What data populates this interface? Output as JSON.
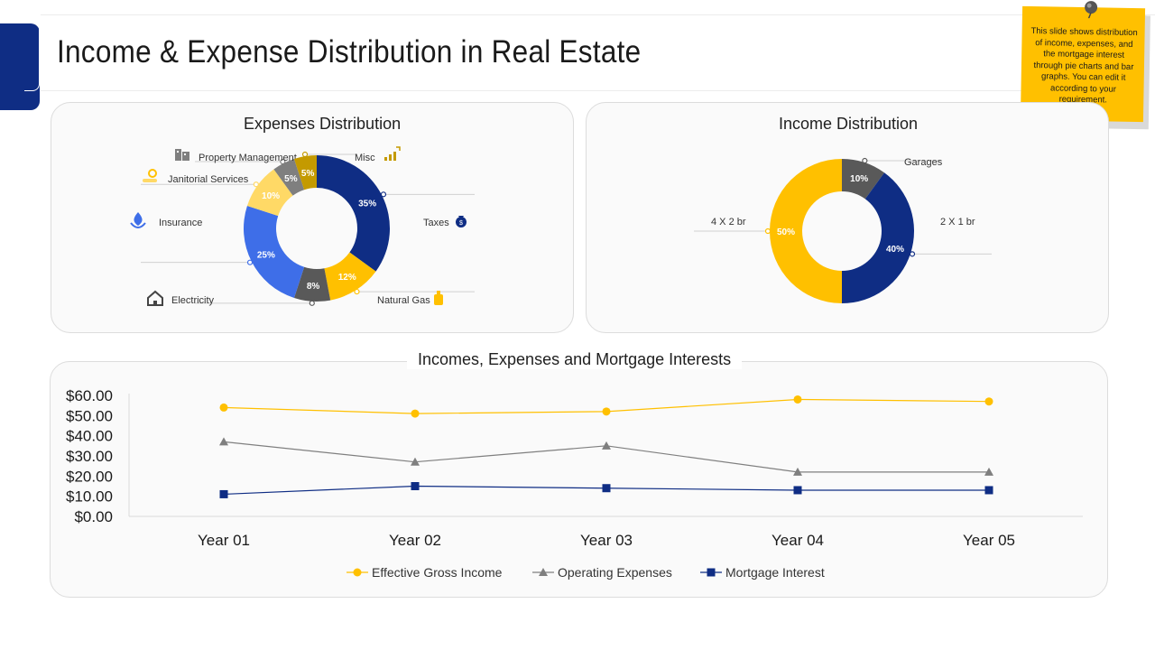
{
  "title": "Income & Expense Distribution in Real Estate",
  "note": {
    "text": "This slide shows distribution of income, expenses, and the mortgage interest through pie charts and bar graphs. You can edit it according to your requirement."
  },
  "colors": {
    "navy": "#0f2d84",
    "yellow": "#ffc000",
    "gray": "#595959",
    "blue": "#3e6ee8",
    "light_yellow": "#ffd966",
    "gold": "#c49a00",
    "axis_gray": "#7f7f7f"
  },
  "chart_data": [
    {
      "type": "pie",
      "variant": "donut",
      "title": "Expenses Distribution",
      "slices": [
        {
          "label": "Taxes",
          "value": 35,
          "display": "35%",
          "color": "#0f2d84",
          "icon": "money-bag-icon"
        },
        {
          "label": "Natural Gas",
          "value": 12,
          "display": "12%",
          "color": "#ffc000",
          "icon": "gas-cylinder-icon"
        },
        {
          "label": "Electricity",
          "value": 8,
          "display": "8%",
          "color": "#595959",
          "icon": "house-icon"
        },
        {
          "label": "Insurance",
          "value": 25,
          "display": "25%",
          "color": "#3e6ee8",
          "icon": "insurance-hand-icon"
        },
        {
          "label": "Janitorial Services",
          "value": 10,
          "display": "10%",
          "color": "#ffd966",
          "icon": "janitorial-services-icon"
        },
        {
          "label": "Property Management",
          "value": 5,
          "display": "5%",
          "color": "#7f7f7f",
          "icon": "office-building-icon"
        },
        {
          "label": "Misc",
          "value": 5,
          "display": "5%",
          "color": "#c49a00",
          "icon": "bar-chart-icon"
        }
      ]
    },
    {
      "type": "pie",
      "variant": "donut",
      "title": "Income Distribution",
      "slices": [
        {
          "label": "Garages",
          "value": 10,
          "display": "10%",
          "color": "#595959"
        },
        {
          "label": "2 X 1 br",
          "value": 40,
          "display": "40%",
          "color": "#0f2d84"
        },
        {
          "label": "4 X 2 br",
          "value": 50,
          "display": "50%",
          "color": "#ffc000"
        }
      ]
    },
    {
      "type": "line",
      "title": "Incomes, Expenses and Mortgage Interests",
      "categories": [
        "Year 01",
        "Year 02",
        "Year 03",
        "Year 04",
        "Year 05"
      ],
      "ylim": [
        0,
        60
      ],
      "yticks": [
        "$0.00",
        "$10.00",
        "$20.00",
        "$30.00",
        "$40.00",
        "$50.00",
        "$60.00"
      ],
      "legend_position": "bottom",
      "series": [
        {
          "name": "Effective Gross Income",
          "values": [
            54,
            51,
            52,
            58,
            57
          ],
          "color": "#ffc000",
          "marker": "circle"
        },
        {
          "name": "Operating Expenses",
          "values": [
            37,
            27,
            35,
            22,
            22
          ],
          "color": "#7f7f7f",
          "marker": "triangle"
        },
        {
          "name": "Mortgage Interest",
          "values": [
            11,
            15,
            14,
            13,
            13
          ],
          "color": "#0f2d84",
          "marker": "square"
        }
      ]
    }
  ]
}
